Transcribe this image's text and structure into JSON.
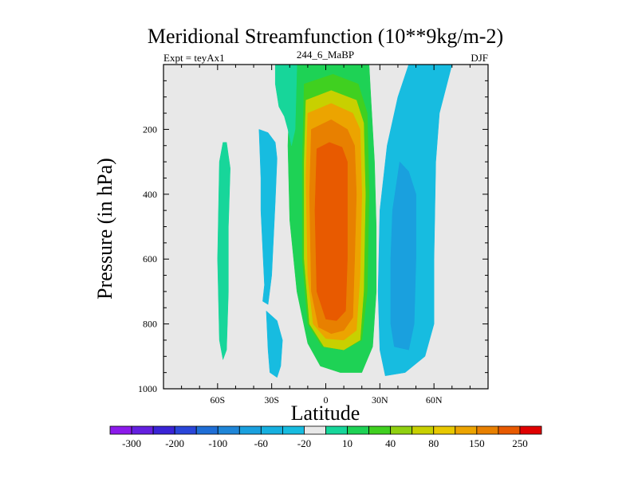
{
  "chart_data": {
    "type": "heatmap",
    "title": "Meridional Streamfunction (10**9kg/m-2)",
    "subtitle_left": "Expt = teyAx1",
    "subtitle_center": "244_6_MaBP",
    "subtitle_right": "DJF",
    "xlabel": "Latitude",
    "ylabel": "Pressure (in hPa)",
    "xlim": [
      -90,
      90
    ],
    "ylim": [
      0,
      1000
    ],
    "y_inverted": true,
    "x_ticks": [
      {
        "value": -60,
        "label": "60S"
      },
      {
        "value": -30,
        "label": "30S"
      },
      {
        "value": 0,
        "label": "0"
      },
      {
        "value": 30,
        "label": "30N"
      },
      {
        "value": 60,
        "label": "60N"
      }
    ],
    "y_ticks": [
      {
        "value": 200,
        "label": "200"
      },
      {
        "value": 400,
        "label": "400"
      },
      {
        "value": 600,
        "label": "600"
      },
      {
        "value": 800,
        "label": "800"
      },
      {
        "value": 1000,
        "label": "1000"
      }
    ],
    "colorbar": {
      "levels": [
        -300,
        -250,
        -200,
        -150,
        -100,
        -80,
        -60,
        -40,
        -20,
        -10,
        10,
        20,
        40,
        60,
        80,
        100,
        150,
        200,
        250,
        300
      ],
      "colors": [
        "#8c1aeb",
        "#6420e0",
        "#3a24d6",
        "#2a46d9",
        "#1f6ed6",
        "#1f86d8",
        "#1aa0de",
        "#16b0e0",
        "#17bce0",
        "#e8e8e8",
        "#17d69a",
        "#1ed255",
        "#40d020",
        "#90d010",
        "#c8d000",
        "#e8c800",
        "#eca400",
        "#e88000",
        "#e85a00",
        "#e00000"
      ],
      "labels": [
        {
          "text": "-300",
          "after_index": 0
        },
        {
          "text": "-200",
          "after_index": 2
        },
        {
          "text": "-100",
          "after_index": 4
        },
        {
          "text": "-60",
          "after_index": 6
        },
        {
          "text": "-20",
          "after_index": 8
        },
        {
          "text": "10",
          "after_index": 10
        },
        {
          "text": "40",
          "after_index": 12
        },
        {
          "text": "80",
          "after_index": 14
        },
        {
          "text": "150",
          "after_index": 16
        },
        {
          "text": "250",
          "after_index": 18
        }
      ]
    },
    "regions": [
      {
        "name": "north-green-cell",
        "color": "#1ed255",
        "outline": [
          [
            -19,
            0
          ],
          [
            -20,
            80
          ],
          [
            -21,
            250
          ],
          [
            -20,
            480
          ],
          [
            -16,
            700
          ],
          [
            -10,
            860
          ],
          [
            -3,
            930
          ],
          [
            8,
            950
          ],
          [
            20,
            950
          ],
          [
            26,
            870
          ],
          [
            28,
            700
          ],
          [
            28,
            500
          ],
          [
            27,
            300
          ],
          [
            25,
            100
          ],
          [
            24,
            0
          ]
        ]
      },
      {
        "name": "north-light-green-cell",
        "color": "#40d020",
        "outline": [
          [
            -12,
            60
          ],
          [
            -13,
            300
          ],
          [
            -13,
            600
          ],
          [
            -10,
            800
          ],
          [
            -2,
            870
          ],
          [
            10,
            880
          ],
          [
            20,
            850
          ],
          [
            23,
            700
          ],
          [
            24,
            400
          ],
          [
            23,
            150
          ],
          [
            18,
            60
          ],
          [
            4,
            30
          ]
        ]
      },
      {
        "name": "north-yellow-cell",
        "color": "#c8d000",
        "outline": [
          [
            -11,
            110
          ],
          [
            -12,
            300
          ],
          [
            -12,
            600
          ],
          [
            -9,
            800
          ],
          [
            -1,
            870
          ],
          [
            10,
            880
          ],
          [
            19,
            850
          ],
          [
            21,
            700
          ],
          [
            22,
            400
          ],
          [
            21,
            180
          ],
          [
            17,
            110
          ],
          [
            3,
            80
          ]
        ]
      },
      {
        "name": "north-light-orange-cell",
        "color": "#eca400",
        "outline": [
          [
            -10,
            150
          ],
          [
            -11,
            350
          ],
          [
            -10,
            650
          ],
          [
            -7,
            800
          ],
          [
            0,
            845
          ],
          [
            10,
            850
          ],
          [
            17,
            820
          ],
          [
            19,
            650
          ],
          [
            20,
            400
          ],
          [
            19,
            200
          ],
          [
            15,
            150
          ],
          [
            3,
            120
          ]
        ]
      },
      {
        "name": "north-orange-cell",
        "color": "#e88000",
        "outline": [
          [
            -8,
            200
          ],
          [
            -9,
            400
          ],
          [
            -8,
            700
          ],
          [
            -4,
            810
          ],
          [
            3,
            830
          ],
          [
            10,
            820
          ],
          [
            15,
            780
          ],
          [
            16,
            600
          ],
          [
            17,
            400
          ],
          [
            16,
            250
          ],
          [
            12,
            200
          ],
          [
            3,
            170
          ]
        ]
      },
      {
        "name": "north-red-orange-cell",
        "color": "#e85a00",
        "outline": [
          [
            -5,
            260
          ],
          [
            -6,
            450
          ],
          [
            -5,
            700
          ],
          [
            0,
            785
          ],
          [
            6,
            790
          ],
          [
            11,
            760
          ],
          [
            12,
            600
          ],
          [
            12,
            400
          ],
          [
            12,
            300
          ],
          [
            9,
            255
          ],
          [
            2,
            240
          ]
        ]
      },
      {
        "name": "south-teal-cell",
        "color": "#17d69a",
        "outline": [
          [
            -57,
            240
          ],
          [
            -59,
            300
          ],
          [
            -60,
            600
          ],
          [
            -59,
            850
          ],
          [
            -57,
            910
          ],
          [
            -55,
            880
          ],
          [
            -54,
            700
          ],
          [
            -54,
            500
          ],
          [
            -53,
            320
          ],
          [
            -55,
            240
          ]
        ]
      },
      {
        "name": "south-cyan-cell",
        "color": "#17bce0",
        "outline": [
          [
            -37,
            200
          ],
          [
            -36,
            350
          ],
          [
            -36,
            450
          ],
          [
            -34,
            680
          ],
          [
            -35,
            730
          ],
          [
            -32,
            740
          ],
          [
            -30,
            650
          ],
          [
            -28,
            420
          ],
          [
            -27,
            290
          ],
          [
            -28,
            240
          ],
          [
            -32,
            210
          ]
        ]
      },
      {
        "name": "south-lower-cyan-cell",
        "color": "#17bce0",
        "outline": [
          [
            -33,
            760
          ],
          [
            -32,
            880
          ],
          [
            -31,
            950
          ],
          [
            -27,
            965
          ],
          [
            -25,
            930
          ],
          [
            -24,
            850
          ],
          [
            -27,
            790
          ]
        ]
      },
      {
        "name": "north-cyan-cell",
        "color": "#17bce0",
        "outline": [
          [
            46,
            0
          ],
          [
            40,
            100
          ],
          [
            34,
            250
          ],
          [
            30,
            450
          ],
          [
            29,
            700
          ],
          [
            30,
            880
          ],
          [
            33,
            960
          ],
          [
            44,
            950
          ],
          [
            55,
            900
          ],
          [
            60,
            800
          ],
          [
            60,
            600
          ],
          [
            61,
            300
          ],
          [
            63,
            150
          ],
          [
            70,
            0
          ]
        ]
      },
      {
        "name": "north-blue-cell",
        "color": "#1aa0de",
        "outline": [
          [
            41,
            300
          ],
          [
            37,
            450
          ],
          [
            36,
            600
          ],
          [
            36,
            800
          ],
          [
            38,
            870
          ],
          [
            46,
            880
          ],
          [
            49,
            800
          ],
          [
            50,
            600
          ],
          [
            50,
            400
          ],
          [
            46,
            330
          ]
        ]
      },
      {
        "name": "upper-teal-strip",
        "color": "#17d69a",
        "outline": [
          [
            -28,
            0
          ],
          [
            -28,
            60
          ],
          [
            -26,
            130
          ],
          [
            -23,
            160
          ],
          [
            -21,
            200
          ],
          [
            -19,
            250
          ],
          [
            -17,
            200
          ],
          [
            -16,
            0
          ]
        ]
      }
    ]
  }
}
